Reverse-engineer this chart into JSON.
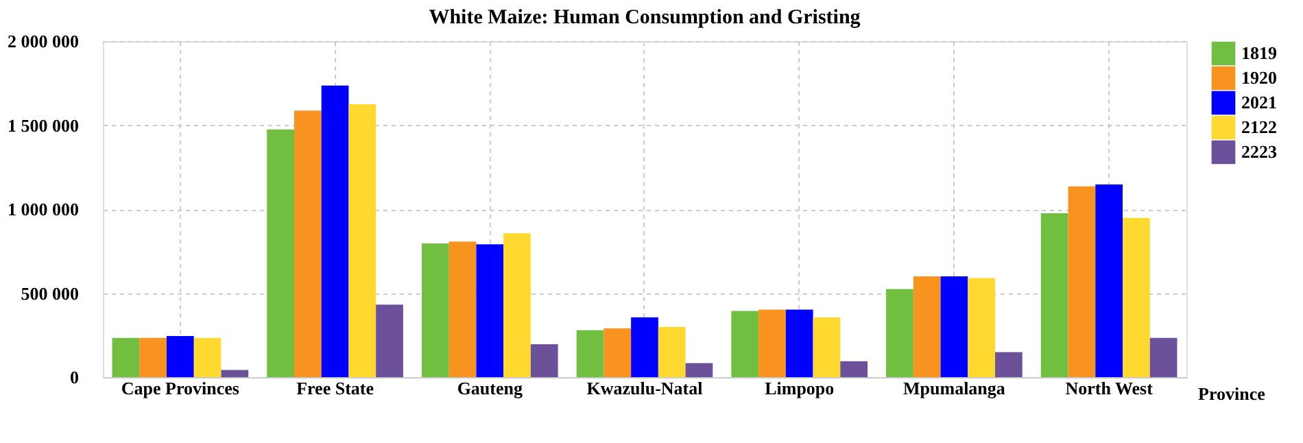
{
  "chart_data": {
    "type": "bar",
    "title": "White Maize: Human Consumption and Gristing",
    "xlabel": "Province",
    "categories": [
      "Cape Provinces",
      "Free State",
      "Gauteng",
      "Kwazulu-Natal",
      "Limpopo",
      "Mpumalanga",
      "North West"
    ],
    "series": [
      {
        "name": "1819",
        "color": "#70bf41",
        "values": [
          234000,
          1475000,
          796000,
          280000,
          394000,
          524000,
          976000
        ]
      },
      {
        "name": "1920",
        "color": "#f7931e",
        "values": [
          234000,
          1587000,
          807000,
          291000,
          402000,
          600000,
          1136000
        ]
      },
      {
        "name": "2021",
        "color": "#0000ff",
        "values": [
          245000,
          1736000,
          791000,
          356000,
          402000,
          600000,
          1147000
        ]
      },
      {
        "name": "2122",
        "color": "#ffd92f",
        "values": [
          234000,
          1625000,
          856000,
          299000,
          356000,
          590000,
          948000
        ]
      },
      {
        "name": "2223",
        "color": "#6a5199",
        "values": [
          43000,
          432000,
          196000,
          84000,
          95000,
          149000,
          234000
        ]
      }
    ],
    "ylim": [
      0,
      2000000
    ],
    "yticks": [
      0,
      {
        "value": 500000,
        "label": "500 000"
      },
      {
        "value": 1000000,
        "label": "1 000 000"
      },
      {
        "value": 1500000,
        "label": "1 500 000"
      },
      {
        "value": 2000000,
        "label": "2 000 000"
      }
    ],
    "grid": true,
    "legend": "top right"
  }
}
